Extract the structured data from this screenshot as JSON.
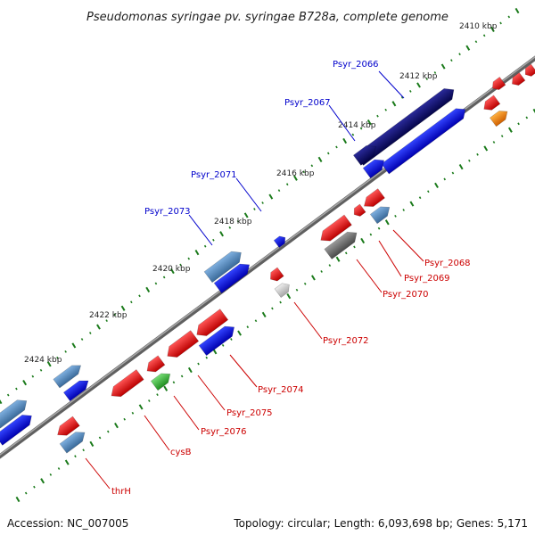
{
  "title": "Pseudomonas syringae pv. syringae B728a, complete genome",
  "footer": {
    "accession": "Accession: NC_007005",
    "summary": "Topology: circular; Length: 6,093,698 bp; Genes: 5,171"
  },
  "kbp_labels": [
    "2410 kbp",
    "2412 kbp",
    "2414 kbp",
    "2416 kbp",
    "2418 kbp",
    "2420 kbp",
    "2422 kbp",
    "2424 kbp"
  ],
  "gene_labels_forward": [
    "Psyr_2066",
    "Psyr_2067",
    "Psyr_2071",
    "Psyr_2073"
  ],
  "gene_labels_reverse": [
    "Psyr_2068",
    "Psyr_2069",
    "Psyr_2070",
    "Psyr_2072",
    "Psyr_2074",
    "Psyr_2075",
    "Psyr_2076",
    "cysB",
    "thrH"
  ],
  "colors": {
    "backbone": "#808080",
    "forward_label": "#0000cc",
    "reverse_label": "#cc0000",
    "tick": "#1a7a1a",
    "dark_navy": "#0a0a6e",
    "blue": "#0a14e0",
    "steel_blue": "#4f82b8",
    "red": "#ee1111",
    "green": "#33bb33",
    "gray": "#777777",
    "light_gray": "#c8c8c8",
    "orange": "#ff8800"
  }
}
